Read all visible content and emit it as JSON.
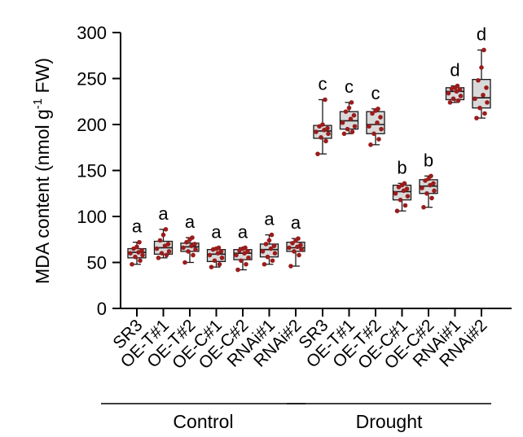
{
  "chart_data": {
    "type": "box",
    "ylabel_main": "MDA content (nmol g",
    "ylabel_sup": "-1",
    "ylabel_end": " FW)",
    "ylim": [
      0,
      300
    ],
    "yticks": [
      "0",
      "50",
      "100",
      "150",
      "200",
      "250",
      "300"
    ],
    "groups": [
      {
        "name": "Control",
        "categories": [
          {
            "label": "SR3",
            "min": 48,
            "q1": 55,
            "median": 61,
            "q3": 65,
            "max": 72,
            "letter": "a",
            "points": [
              48,
              52,
              56,
              58,
              60,
              61,
              63,
              65,
              67,
              72
            ]
          },
          {
            "label": "OE-T#1",
            "min": 55,
            "q1": 59,
            "median": 66,
            "q3": 73,
            "max": 86,
            "letter": "a",
            "points": [
              55,
              58,
              60,
              62,
              65,
              68,
              70,
              74,
              80,
              86
            ]
          },
          {
            "label": "OE-T#2",
            "min": 50,
            "q1": 62,
            "median": 67,
            "q3": 71,
            "max": 77,
            "letter": "a",
            "points": [
              50,
              58,
              62,
              64,
              66,
              68,
              70,
              72,
              75,
              77
            ]
          },
          {
            "label": "OE-C#1",
            "min": 45,
            "q1": 51,
            "median": 59,
            "q3": 64,
            "max": 66,
            "letter": "a",
            "points": [
              45,
              48,
              52,
              55,
              58,
              60,
              62,
              64,
              65,
              66
            ]
          },
          {
            "label": "OE-C#2",
            "min": 42,
            "q1": 53,
            "median": 60,
            "q3": 64,
            "max": 66,
            "letter": "a",
            "points": [
              42,
              48,
              52,
              55,
              58,
              60,
              62,
              63,
              65,
              66
            ]
          },
          {
            "label": "RNAi#1",
            "min": 48,
            "q1": 56,
            "median": 64,
            "q3": 70,
            "max": 80,
            "letter": "a",
            "points": [
              48,
              52,
              56,
              60,
              62,
              65,
              68,
              70,
              74,
              80
            ]
          },
          {
            "label": "RNAi#2",
            "min": 46,
            "q1": 62,
            "median": 66,
            "q3": 72,
            "max": 76,
            "letter": "a",
            "points": [
              46,
              58,
              62,
              64,
              66,
              67,
              69,
              71,
              74,
              76
            ]
          }
        ]
      },
      {
        "name": "Drought",
        "categories": [
          {
            "label": "SR3",
            "min": 168,
            "q1": 185,
            "median": 193,
            "q3": 199,
            "max": 227,
            "letter": "c",
            "points": [
              168,
              182,
              186,
              190,
              192,
              194,
              196,
              198,
              200,
              227
            ]
          },
          {
            "label": "OE-T#1",
            "min": 190,
            "q1": 195,
            "median": 204,
            "q3": 214,
            "max": 224,
            "letter": "c",
            "points": [
              190,
              192,
              195,
              198,
              202,
              206,
              210,
              214,
              218,
              224
            ]
          },
          {
            "label": "OE-T#2",
            "min": 178,
            "q1": 190,
            "median": 200,
            "q3": 214,
            "max": 217,
            "letter": "c",
            "points": [
              178,
              184,
              190,
              195,
              198,
              202,
              208,
              212,
              215,
              217
            ]
          },
          {
            "label": "OE-C#1",
            "min": 106,
            "q1": 118,
            "median": 127,
            "q3": 134,
            "max": 136,
            "letter": "b",
            "points": [
              106,
              112,
              118,
              122,
              125,
              128,
              130,
              132,
              134,
              136
            ]
          },
          {
            "label": "OE-C#2",
            "min": 110,
            "q1": 125,
            "median": 133,
            "q3": 140,
            "max": 144,
            "letter": "b",
            "points": [
              110,
              120,
              125,
              128,
              131,
              134,
              136,
              139,
              141,
              144
            ]
          },
          {
            "label": "RNAi#1",
            "min": 224,
            "q1": 227,
            "median": 236,
            "q3": 240,
            "max": 242,
            "letter": "d",
            "points": [
              224,
              226,
              228,
              231,
              234,
              236,
              238,
              239,
              240,
              242
            ]
          },
          {
            "label": "RNAi#2",
            "min": 207,
            "q1": 218,
            "median": 229,
            "q3": 249,
            "max": 281,
            "letter": "d",
            "points": [
              207,
              212,
              218,
              224,
              228,
              232,
              240,
              248,
              262,
              281
            ]
          }
        ]
      }
    ]
  },
  "colors": {
    "box_fill": "#d9d9d9",
    "box_stroke": "#1a1a1a",
    "point": "#9b1c1c"
  }
}
